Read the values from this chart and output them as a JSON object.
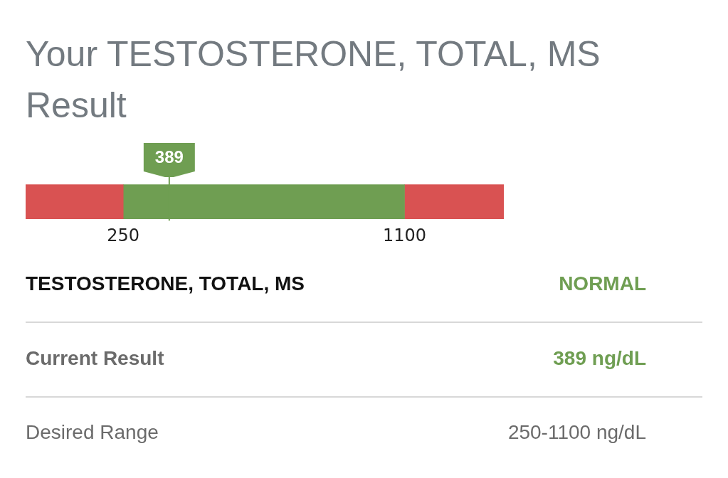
{
  "chart_data": {
    "type": "bar",
    "orientation": "horizontal",
    "title": "Your TESTOSTERONE, TOTAL, MS Result",
    "categories": [
      null
    ],
    "series": [
      {
        "color": "#d95252",
        "values": [
          295
        ],
        "base": [
          -45
        ]
      },
      {
        "color": "#6f9e52",
        "values": [
          850
        ],
        "base": [
          250
        ]
      },
      {
        "color": "#d95252",
        "values": [
          300
        ],
        "base": [
          1100
        ]
      }
    ],
    "xlim": [
      -45,
      1400
    ],
    "xticks": [
      250,
      1100
    ],
    "ref_lines": [
      {
        "axis": "x",
        "value": 389,
        "label": "389",
        "color": "#6f9e52"
      }
    ],
    "annotations": [
      "TESTOSTERONE, TOTAL, MS",
      "NORMAL",
      "Current Result",
      "389 ng/dL",
      "Desired Range",
      "250-1100 ng/dL"
    ]
  }
}
